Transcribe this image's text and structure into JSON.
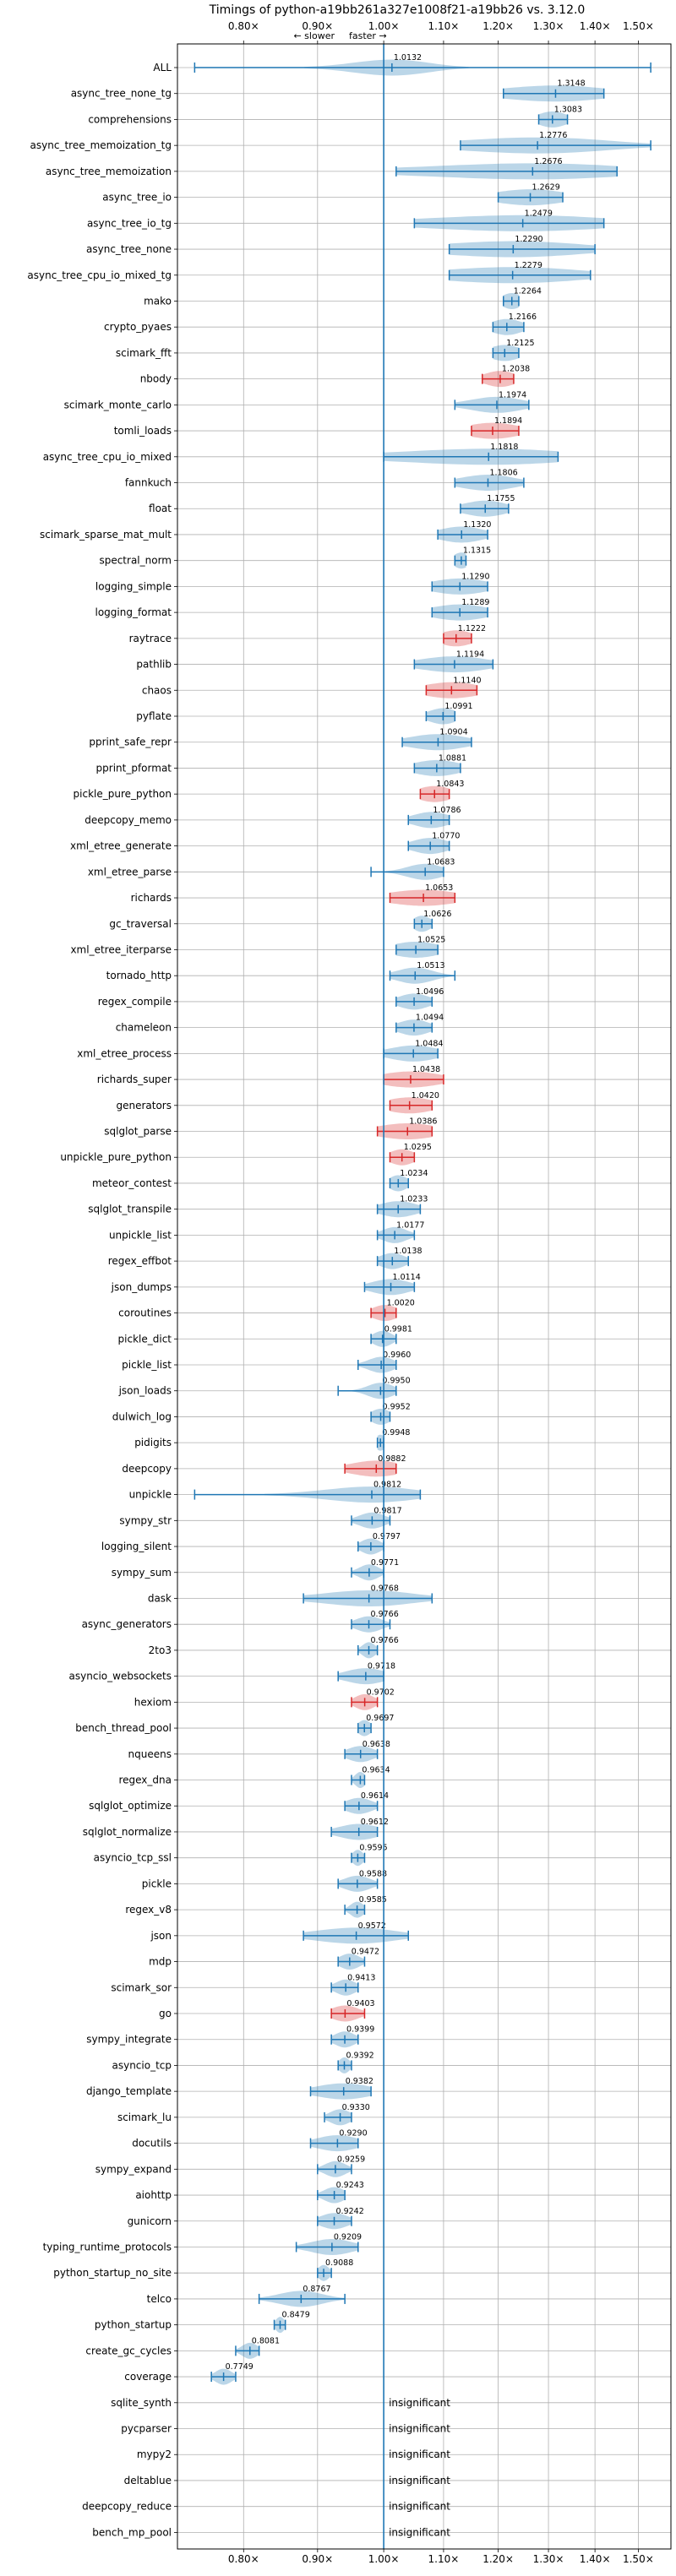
{
  "chart_data": {
    "type": "violin",
    "title": "Timings of python-a19bb261a327e1008f21-a19bb26 vs. 3.12.0",
    "subtitle_left": "← slower",
    "subtitle_right": "faster →",
    "x_scale": "log",
    "xlim": [
      0.72,
      1.58
    ],
    "x_ticks": [
      0.8,
      0.9,
      1.0,
      1.1,
      1.2,
      1.3,
      1.4,
      1.5
    ],
    "x_tick_labels": [
      "0.80×",
      "0.90×",
      "1.00×",
      "1.10×",
      "1.20×",
      "1.30×",
      "1.40×",
      "1.50×"
    ],
    "reference_line": 1.0,
    "grid": true,
    "colors": {
      "normal": "#1f77b4",
      "highlight": "#d62728"
    },
    "insignificant_label": "insignificant",
    "benchmarks": [
      {
        "name": "ALL",
        "value": "1.0132",
        "mean": 1.0132,
        "min": 0.74,
        "max": 1.53,
        "spread": 0.06,
        "highlight": false
      },
      {
        "name": "async_tree_none_tg",
        "value": "1.3148",
        "mean": 1.3148,
        "min": 1.21,
        "max": 1.42,
        "spread": 0.11,
        "highlight": false
      },
      {
        "name": "comprehensions",
        "value": "1.3083",
        "mean": 1.3083,
        "min": 1.28,
        "max": 1.34,
        "spread": 0.03,
        "highlight": false
      },
      {
        "name": "async_tree_memoization_tg",
        "value": "1.2776",
        "mean": 1.2776,
        "min": 1.13,
        "max": 1.53,
        "spread": 0.15,
        "highlight": false
      },
      {
        "name": "async_tree_memoization",
        "value": "1.2676",
        "mean": 1.2676,
        "min": 1.02,
        "max": 1.45,
        "spread": 0.2,
        "highlight": false
      },
      {
        "name": "async_tree_io",
        "value": "1.2629",
        "mean": 1.2629,
        "min": 1.2,
        "max": 1.33,
        "spread": 0.07,
        "highlight": false
      },
      {
        "name": "async_tree_io_tg",
        "value": "1.2479",
        "mean": 1.2479,
        "min": 1.05,
        "max": 1.42,
        "spread": 0.18,
        "highlight": false
      },
      {
        "name": "async_tree_none",
        "value": "1.2290",
        "mean": 1.229,
        "min": 1.11,
        "max": 1.4,
        "spread": 0.14,
        "highlight": false
      },
      {
        "name": "async_tree_cpu_io_mixed_tg",
        "value": "1.2279",
        "mean": 1.2279,
        "min": 1.11,
        "max": 1.39,
        "spread": 0.14,
        "highlight": false
      },
      {
        "name": "mako",
        "value": "1.2264",
        "mean": 1.2264,
        "min": 1.21,
        "max": 1.24,
        "spread": 0.02,
        "highlight": false
      },
      {
        "name": "crypto_pyaes",
        "value": "1.2166",
        "mean": 1.2166,
        "min": 1.19,
        "max": 1.25,
        "spread": 0.03,
        "highlight": false
      },
      {
        "name": "scimark_fft",
        "value": "1.2125",
        "mean": 1.2125,
        "min": 1.19,
        "max": 1.24,
        "spread": 0.03,
        "highlight": false
      },
      {
        "name": "nbody",
        "value": "1.2038",
        "mean": 1.2038,
        "min": 1.17,
        "max": 1.23,
        "spread": 0.03,
        "highlight": true
      },
      {
        "name": "scimark_monte_carlo",
        "value": "1.1974",
        "mean": 1.1974,
        "min": 1.12,
        "max": 1.26,
        "spread": 0.05,
        "highlight": false
      },
      {
        "name": "tomli_loads",
        "value": "1.1894",
        "mean": 1.1894,
        "min": 1.15,
        "max": 1.24,
        "spread": 0.05,
        "highlight": true
      },
      {
        "name": "async_tree_cpu_io_mixed",
        "value": "1.1818",
        "mean": 1.1818,
        "min": 1.0,
        "max": 1.32,
        "spread": 0.16,
        "highlight": false
      },
      {
        "name": "fannkuch",
        "value": "1.1806",
        "mean": 1.1806,
        "min": 1.12,
        "max": 1.25,
        "spread": 0.05,
        "highlight": false
      },
      {
        "name": "float",
        "value": "1.1755",
        "mean": 1.1755,
        "min": 1.13,
        "max": 1.22,
        "spread": 0.04,
        "highlight": false
      },
      {
        "name": "scimark_sparse_mat_mult",
        "value": "1.1320",
        "mean": 1.132,
        "min": 1.09,
        "max": 1.18,
        "spread": 0.04,
        "highlight": false
      },
      {
        "name": "spectral_norm",
        "value": "1.1315",
        "mean": 1.1315,
        "min": 1.12,
        "max": 1.14,
        "spread": 0.015,
        "highlight": false
      },
      {
        "name": "logging_simple",
        "value": "1.1290",
        "mean": 1.129,
        "min": 1.08,
        "max": 1.18,
        "spread": 0.05,
        "highlight": false
      },
      {
        "name": "logging_format",
        "value": "1.1289",
        "mean": 1.1289,
        "min": 1.08,
        "max": 1.18,
        "spread": 0.05,
        "highlight": false
      },
      {
        "name": "raytrace",
        "value": "1.1222",
        "mean": 1.1222,
        "min": 1.1,
        "max": 1.15,
        "spread": 0.03,
        "highlight": true
      },
      {
        "name": "pathlib",
        "value": "1.1194",
        "mean": 1.1194,
        "min": 1.05,
        "max": 1.19,
        "spread": 0.06,
        "highlight": false
      },
      {
        "name": "chaos",
        "value": "1.1140",
        "mean": 1.114,
        "min": 1.07,
        "max": 1.16,
        "spread": 0.05,
        "highlight": true
      },
      {
        "name": "pyflate",
        "value": "1.0991",
        "mean": 1.0991,
        "min": 1.07,
        "max": 1.12,
        "spread": 0.025,
        "highlight": false
      },
      {
        "name": "pprint_safe_repr",
        "value": "1.0904",
        "mean": 1.0904,
        "min": 1.03,
        "max": 1.15,
        "spread": 0.05,
        "highlight": false
      },
      {
        "name": "pprint_pformat",
        "value": "1.0881",
        "mean": 1.0881,
        "min": 1.05,
        "max": 1.13,
        "spread": 0.04,
        "highlight": false
      },
      {
        "name": "pickle_pure_python",
        "value": "1.0843",
        "mean": 1.0843,
        "min": 1.06,
        "max": 1.11,
        "spread": 0.03,
        "highlight": true
      },
      {
        "name": "deepcopy_memo",
        "value": "1.0786",
        "mean": 1.0786,
        "min": 1.04,
        "max": 1.11,
        "spread": 0.03,
        "highlight": false
      },
      {
        "name": "xml_etree_generate",
        "value": "1.0770",
        "mean": 1.077,
        "min": 1.04,
        "max": 1.11,
        "spread": 0.03,
        "highlight": false
      },
      {
        "name": "xml_etree_parse",
        "value": "1.0683",
        "mean": 1.0683,
        "min": 0.98,
        "max": 1.1,
        "spread": 0.03,
        "highlight": false
      },
      {
        "name": "richards",
        "value": "1.0653",
        "mean": 1.0653,
        "min": 1.01,
        "max": 1.12,
        "spread": 0.06,
        "highlight": true
      },
      {
        "name": "gc_traversal",
        "value": "1.0626",
        "mean": 1.0626,
        "min": 1.05,
        "max": 1.08,
        "spread": 0.015,
        "highlight": false
      },
      {
        "name": "xml_etree_iterparse",
        "value": "1.0525",
        "mean": 1.0525,
        "min": 1.02,
        "max": 1.09,
        "spread": 0.04,
        "highlight": false
      },
      {
        "name": "tornado_http",
        "value": "1.0513",
        "mean": 1.0513,
        "min": 1.01,
        "max": 1.12,
        "spread": 0.03,
        "highlight": false
      },
      {
        "name": "regex_compile",
        "value": "1.0496",
        "mean": 1.0496,
        "min": 1.02,
        "max": 1.08,
        "spread": 0.025,
        "highlight": false
      },
      {
        "name": "chameleon",
        "value": "1.0494",
        "mean": 1.0494,
        "min": 1.02,
        "max": 1.08,
        "spread": 0.025,
        "highlight": false
      },
      {
        "name": "xml_etree_process",
        "value": "1.0484",
        "mean": 1.0484,
        "min": 1.0,
        "max": 1.09,
        "spread": 0.04,
        "highlight": false
      },
      {
        "name": "richards_super",
        "value": "1.0438",
        "mean": 1.0438,
        "min": 1.0,
        "max": 1.1,
        "spread": 0.05,
        "highlight": true
      },
      {
        "name": "generators",
        "value": "1.0420",
        "mean": 1.042,
        "min": 1.01,
        "max": 1.08,
        "spread": 0.04,
        "highlight": true
      },
      {
        "name": "sqlglot_parse",
        "value": "1.0386",
        "mean": 1.0386,
        "min": 0.99,
        "max": 1.08,
        "spread": 0.05,
        "highlight": true
      },
      {
        "name": "unpickle_pure_python",
        "value": "1.0295",
        "mean": 1.0295,
        "min": 1.01,
        "max": 1.05,
        "spread": 0.02,
        "highlight": true
      },
      {
        "name": "meteor_contest",
        "value": "1.0234",
        "mean": 1.0234,
        "min": 1.01,
        "max": 1.04,
        "spread": 0.015,
        "highlight": false
      },
      {
        "name": "sqlglot_transpile",
        "value": "1.0233",
        "mean": 1.0233,
        "min": 0.99,
        "max": 1.06,
        "spread": 0.03,
        "highlight": false
      },
      {
        "name": "unpickle_list",
        "value": "1.0177",
        "mean": 1.0177,
        "min": 0.99,
        "max": 1.05,
        "spread": 0.02,
        "highlight": false
      },
      {
        "name": "regex_effbot",
        "value": "1.0138",
        "mean": 1.0138,
        "min": 0.99,
        "max": 1.04,
        "spread": 0.02,
        "highlight": false
      },
      {
        "name": "json_dumps",
        "value": "1.0114",
        "mean": 1.0114,
        "min": 0.97,
        "max": 1.05,
        "spread": 0.03,
        "highlight": false
      },
      {
        "name": "coroutines",
        "value": "1.0020",
        "mean": 1.002,
        "min": 0.98,
        "max": 1.02,
        "spread": 0.02,
        "highlight": true
      },
      {
        "name": "pickle_dict",
        "value": "0.9981",
        "mean": 0.9981,
        "min": 0.98,
        "max": 1.02,
        "spread": 0.015,
        "highlight": false
      },
      {
        "name": "pickle_list",
        "value": "0.9960",
        "mean": 0.996,
        "min": 0.96,
        "max": 1.02,
        "spread": 0.02,
        "highlight": false
      },
      {
        "name": "json_loads",
        "value": "0.9950",
        "mean": 0.995,
        "min": 0.93,
        "max": 1.02,
        "spread": 0.02,
        "highlight": false
      },
      {
        "name": "dulwich_log",
        "value": "0.9952",
        "mean": 0.9952,
        "min": 0.98,
        "max": 1.01,
        "spread": 0.015,
        "highlight": false
      },
      {
        "name": "pidigits",
        "value": "0.9948",
        "mean": 0.9948,
        "min": 0.99,
        "max": 1.0,
        "spread": 0.008,
        "highlight": false
      },
      {
        "name": "deepcopy",
        "value": "0.9882",
        "mean": 0.9882,
        "min": 0.94,
        "max": 1.02,
        "spread": 0.04,
        "highlight": true
      },
      {
        "name": "unpickle",
        "value": "0.9812",
        "mean": 0.9812,
        "min": 0.74,
        "max": 1.06,
        "spread": 0.07,
        "highlight": false
      },
      {
        "name": "sympy_str",
        "value": "0.9817",
        "mean": 0.9817,
        "min": 0.95,
        "max": 1.01,
        "spread": 0.02,
        "highlight": false
      },
      {
        "name": "logging_silent",
        "value": "0.9797",
        "mean": 0.9797,
        "min": 0.96,
        "max": 1.0,
        "spread": 0.015,
        "highlight": false
      },
      {
        "name": "sympy_sum",
        "value": "0.9771",
        "mean": 0.9771,
        "min": 0.95,
        "max": 1.0,
        "spread": 0.015,
        "highlight": false
      },
      {
        "name": "dask",
        "value": "0.9768",
        "mean": 0.9768,
        "min": 0.88,
        "max": 1.08,
        "spread": 0.07,
        "highlight": false
      },
      {
        "name": "async_generators",
        "value": "0.9766",
        "mean": 0.9766,
        "min": 0.95,
        "max": 1.01,
        "spread": 0.02,
        "highlight": false
      },
      {
        "name": "2to3",
        "value": "0.9766",
        "mean": 0.9766,
        "min": 0.96,
        "max": 0.99,
        "spread": 0.01,
        "highlight": false
      },
      {
        "name": "asyncio_websockets",
        "value": "0.9718",
        "mean": 0.9718,
        "min": 0.93,
        "max": 1.0,
        "spread": 0.03,
        "highlight": false
      },
      {
        "name": "hexiom",
        "value": "0.9702",
        "mean": 0.9702,
        "min": 0.95,
        "max": 0.99,
        "spread": 0.015,
        "highlight": true
      },
      {
        "name": "bench_thread_pool",
        "value": "0.9697",
        "mean": 0.9697,
        "min": 0.96,
        "max": 0.98,
        "spread": 0.01,
        "highlight": false
      },
      {
        "name": "nqueens",
        "value": "0.9638",
        "mean": 0.9638,
        "min": 0.94,
        "max": 0.99,
        "spread": 0.02,
        "highlight": false
      },
      {
        "name": "regex_dna",
        "value": "0.9634",
        "mean": 0.9634,
        "min": 0.95,
        "max": 0.97,
        "spread": 0.008,
        "highlight": false
      },
      {
        "name": "sqlglot_optimize",
        "value": "0.9614",
        "mean": 0.9614,
        "min": 0.94,
        "max": 0.99,
        "spread": 0.02,
        "highlight": false
      },
      {
        "name": "sqlglot_normalize",
        "value": "0.9612",
        "mean": 0.9612,
        "min": 0.92,
        "max": 0.99,
        "spread": 0.03,
        "highlight": false
      },
      {
        "name": "asyncio_tcp_ssl",
        "value": "0.9595",
        "mean": 0.9595,
        "min": 0.95,
        "max": 0.97,
        "spread": 0.008,
        "highlight": false
      },
      {
        "name": "pickle",
        "value": "0.9588",
        "mean": 0.9588,
        "min": 0.93,
        "max": 0.99,
        "spread": 0.02,
        "highlight": false
      },
      {
        "name": "regex_v8",
        "value": "0.9585",
        "mean": 0.9585,
        "min": 0.94,
        "max": 0.97,
        "spread": 0.01,
        "highlight": false
      },
      {
        "name": "json",
        "value": "0.9572",
        "mean": 0.9572,
        "min": 0.88,
        "max": 1.04,
        "spread": 0.06,
        "highlight": false
      },
      {
        "name": "mdp",
        "value": "0.9472",
        "mean": 0.9472,
        "min": 0.93,
        "max": 0.97,
        "spread": 0.015,
        "highlight": false
      },
      {
        "name": "scimark_sor",
        "value": "0.9413",
        "mean": 0.9413,
        "min": 0.92,
        "max": 0.96,
        "spread": 0.015,
        "highlight": false
      },
      {
        "name": "go",
        "value": "0.9403",
        "mean": 0.9403,
        "min": 0.92,
        "max": 0.97,
        "spread": 0.02,
        "highlight": true
      },
      {
        "name": "sympy_integrate",
        "value": "0.9399",
        "mean": 0.9399,
        "min": 0.92,
        "max": 0.96,
        "spread": 0.015,
        "highlight": false
      },
      {
        "name": "asyncio_tcp",
        "value": "0.9392",
        "mean": 0.9392,
        "min": 0.93,
        "max": 0.95,
        "spread": 0.008,
        "highlight": false
      },
      {
        "name": "django_template",
        "value": "0.9382",
        "mean": 0.9382,
        "min": 0.89,
        "max": 0.98,
        "spread": 0.04,
        "highlight": false
      },
      {
        "name": "scimark_lu",
        "value": "0.9330",
        "mean": 0.933,
        "min": 0.91,
        "max": 0.95,
        "spread": 0.015,
        "highlight": false
      },
      {
        "name": "docutils",
        "value": "0.9290",
        "mean": 0.929,
        "min": 0.89,
        "max": 0.96,
        "spread": 0.03,
        "highlight": false
      },
      {
        "name": "sympy_expand",
        "value": "0.9259",
        "mean": 0.9259,
        "min": 0.9,
        "max": 0.95,
        "spread": 0.015,
        "highlight": false
      },
      {
        "name": "aiohttp",
        "value": "0.9243",
        "mean": 0.9243,
        "min": 0.9,
        "max": 0.94,
        "spread": 0.015,
        "highlight": false
      },
      {
        "name": "gunicorn",
        "value": "0.9242",
        "mean": 0.9242,
        "min": 0.9,
        "max": 0.95,
        "spread": 0.02,
        "highlight": false
      },
      {
        "name": "typing_runtime_protocols",
        "value": "0.9209",
        "mean": 0.9209,
        "min": 0.87,
        "max": 0.96,
        "spread": 0.03,
        "highlight": false
      },
      {
        "name": "python_startup_no_site",
        "value": "0.9088",
        "mean": 0.9088,
        "min": 0.9,
        "max": 0.92,
        "spread": 0.008,
        "highlight": false
      },
      {
        "name": "telco",
        "value": "0.8767",
        "mean": 0.8767,
        "min": 0.82,
        "max": 0.94,
        "spread": 0.03,
        "highlight": false
      },
      {
        "name": "python_startup",
        "value": "0.8479",
        "mean": 0.8479,
        "min": 0.84,
        "max": 0.855,
        "spread": 0.006,
        "highlight": false
      },
      {
        "name": "create_gc_cycles",
        "value": "0.8081",
        "mean": 0.8081,
        "min": 0.79,
        "max": 0.82,
        "spread": 0.01,
        "highlight": false
      },
      {
        "name": "coverage",
        "value": "0.7749",
        "mean": 0.7749,
        "min": 0.76,
        "max": 0.79,
        "spread": 0.01,
        "highlight": false
      },
      {
        "name": "sqlite_synth",
        "value": "insignificant",
        "insignificant": true
      },
      {
        "name": "pycparser",
        "value": "insignificant",
        "insignificant": true
      },
      {
        "name": "mypy2",
        "value": "insignificant",
        "insignificant": true
      },
      {
        "name": "deltablue",
        "value": "insignificant",
        "insignificant": true
      },
      {
        "name": "deepcopy_reduce",
        "value": "insignificant",
        "insignificant": true
      },
      {
        "name": "bench_mp_pool",
        "value": "insignificant",
        "insignificant": true
      }
    ]
  }
}
